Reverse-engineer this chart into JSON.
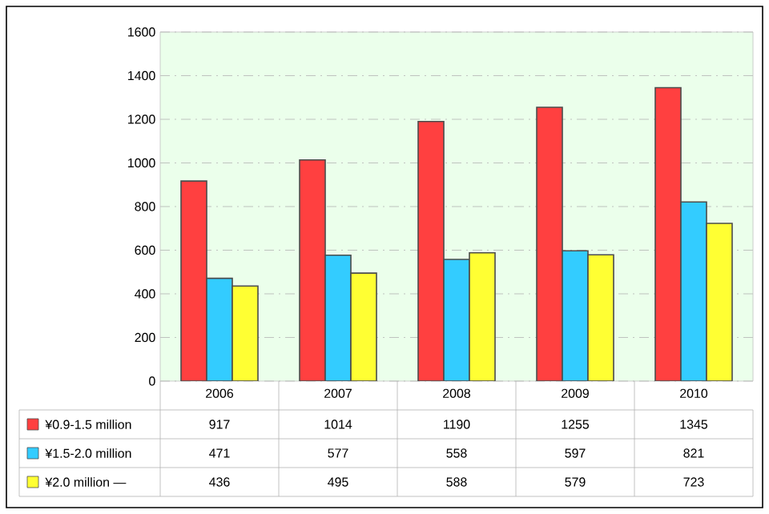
{
  "chart_data": {
    "type": "bar",
    "categories": [
      "2006",
      "2007",
      "2008",
      "2009",
      "2010"
    ],
    "series": [
      {
        "name": "¥0.9-1.5 million",
        "color": "#ff4040",
        "values": [
          917,
          1014,
          1190,
          1255,
          1345
        ]
      },
      {
        "name": "¥1.5-2.0 million",
        "color": "#33ccff",
        "values": [
          471,
          577,
          558,
          597,
          821
        ]
      },
      {
        "name": "¥2.0 million —",
        "color": "#ffff33",
        "values": [
          436,
          495,
          588,
          579,
          723
        ]
      }
    ],
    "ylim": [
      0,
      1600
    ],
    "yticks": [
      0,
      200,
      400,
      600,
      800,
      1000,
      1200,
      1400,
      1600
    ],
    "grid": "y",
    "legend": "bottom",
    "data_labels": true
  }
}
